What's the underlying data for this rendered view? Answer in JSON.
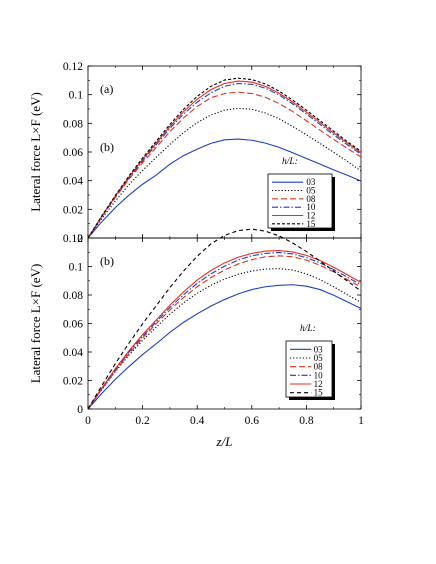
{
  "chart_data": [
    {
      "type": "line",
      "panel_label_top": "(a)",
      "panel_label_mid": "(b)",
      "ylabel": "Lateral force L×F (eV)",
      "xlabel": "",
      "xlim": [
        0,
        1
      ],
      "ylim": [
        0,
        0.12
      ],
      "yticks": [
        "0",
        "0.02",
        "0.04",
        "0.06",
        "0.08",
        "0.1",
        "0.12"
      ],
      "xticks": [],
      "legend_title": "h/L:",
      "legend_position": "lower-right",
      "x": [
        0,
        0.05,
        0.1,
        0.15,
        0.2,
        0.25,
        0.3,
        0.35,
        0.4,
        0.45,
        0.5,
        0.55,
        0.6,
        0.65,
        0.7,
        0.75,
        0.8,
        0.85,
        0.9,
        0.95,
        1.0
      ],
      "series": [
        {
          "name": "03",
          "color": "#1f3fbf",
          "dash": "solid",
          "values": [
            0,
            0.0112,
            0.0212,
            0.0299,
            0.0375,
            0.0439,
            0.0515,
            0.0575,
            0.062,
            0.066,
            0.0685,
            0.069,
            0.0682,
            0.0662,
            0.0632,
            0.0595,
            0.0555,
            0.0515,
            0.0475,
            0.0438,
            0.0398
          ]
        },
        {
          "name": "05",
          "color": "#000000",
          "dash": "dotted",
          "values": [
            0,
            0.0134,
            0.0258,
            0.0372,
            0.0472,
            0.0563,
            0.0653,
            0.0735,
            0.0805,
            0.0858,
            0.0892,
            0.0905,
            0.0898,
            0.0872,
            0.0832,
            0.0778,
            0.072,
            0.066,
            0.0598,
            0.0535,
            0.0468
          ]
        },
        {
          "name": "08",
          "color": "#e03020",
          "dash": "longdash",
          "values": [
            0,
            0.0145,
            0.0282,
            0.041,
            0.0525,
            0.0632,
            0.0742,
            0.0838,
            0.0918,
            0.0978,
            0.1008,
            0.1018,
            0.1008,
            0.0982,
            0.0938,
            0.0882,
            0.0818,
            0.0752,
            0.0688,
            0.0625,
            0.0565
          ]
        },
        {
          "name": "10",
          "color": "#1f3fbf",
          "dash": "dashdot",
          "values": [
            0,
            0.0148,
            0.0288,
            0.0418,
            0.0538,
            0.065,
            0.0765,
            0.0865,
            0.0948,
            0.1012,
            0.1058,
            0.1078,
            0.1072,
            0.1045,
            0.0998,
            0.0935,
            0.0865,
            0.0792,
            0.072,
            0.065,
            0.0585
          ]
        },
        {
          "name": "12",
          "color": "#e03020",
          "dash": "solid",
          "values": [
            0,
            0.015,
            0.0292,
            0.0425,
            0.0548,
            0.0662,
            0.0778,
            0.0882,
            0.0968,
            0.1035,
            0.1078,
            0.1095,
            0.1088,
            0.1058,
            0.101,
            0.0948,
            0.0878,
            0.0805,
            0.0732,
            0.0662,
            0.0595
          ]
        },
        {
          "name": "15",
          "color": "#000000",
          "dash": "shortdash",
          "values": [
            0,
            0.0152,
            0.0296,
            0.0432,
            0.0558,
            0.0675,
            0.0792,
            0.0898,
            0.0988,
            0.1058,
            0.1102,
            0.1115,
            0.1105,
            0.1075,
            0.1025,
            0.0962,
            0.0892,
            0.0818,
            0.0745,
            0.0672,
            0.0605
          ]
        }
      ]
    },
    {
      "type": "line",
      "panel_label_top": "(b)",
      "ylabel": "Lateral force L×F (eV)",
      "xlabel": "z/L",
      "xlim": [
        0,
        1
      ],
      "ylim": [
        0,
        0.12
      ],
      "yticks": [
        "0",
        "0.02",
        "0.04",
        "0.06",
        "0.08",
        "0.1",
        "0.12"
      ],
      "xticks": [
        "0",
        "0.2",
        "0.4",
        "0.6",
        "0.8",
        "1"
      ],
      "legend_title": "h/L:",
      "legend_position": "lower-right",
      "x": [
        0,
        0.05,
        0.1,
        0.15,
        0.2,
        0.25,
        0.3,
        0.35,
        0.4,
        0.45,
        0.5,
        0.55,
        0.6,
        0.65,
        0.7,
        0.75,
        0.8,
        0.85,
        0.9,
        0.95,
        1.0
      ],
      "series": [
        {
          "name": "03",
          "color": "#1f3fbf",
          "dash": "solid",
          "values": [
            0,
            0.0108,
            0.0208,
            0.0298,
            0.0382,
            0.0458,
            0.0538,
            0.0608,
            0.0668,
            0.0722,
            0.0768,
            0.0808,
            0.0838,
            0.0858,
            0.0868,
            0.0872,
            0.0862,
            0.0838,
            0.0798,
            0.0752,
            0.0705
          ]
        },
        {
          "name": "05",
          "color": "#000000",
          "dash": "dotted",
          "values": [
            0,
            0.0135,
            0.0262,
            0.0378,
            0.0482,
            0.0575,
            0.0665,
            0.0745,
            0.0812,
            0.0868,
            0.0912,
            0.0945,
            0.0968,
            0.0982,
            0.0985,
            0.0975,
            0.0948,
            0.0908,
            0.0858,
            0.0802,
            0.0748
          ]
        },
        {
          "name": "08",
          "color": "#e03020",
          "dash": "longdash",
          "values": [
            0,
            0.0138,
            0.0268,
            0.0388,
            0.0498,
            0.0598,
            0.0695,
            0.0782,
            0.0858,
            0.0922,
            0.0975,
            0.1018,
            0.1048,
            0.1068,
            0.1075,
            0.1068,
            0.1045,
            0.1008,
            0.0962,
            0.0908,
            0.0855
          ]
        },
        {
          "name": "10",
          "color": "#1f3fbf",
          "dash": "dashdot",
          "values": [
            0,
            0.0142,
            0.0275,
            0.0398,
            0.051,
            0.0612,
            0.0712,
            0.0802,
            0.0882,
            0.0948,
            0.1002,
            0.1045,
            0.1075,
            0.1092,
            0.1098,
            0.1088,
            0.1062,
            0.1025,
            0.0978,
            0.0925,
            0.0872
          ]
        },
        {
          "name": "12",
          "color": "#e03020",
          "dash": "solid",
          "values": [
            0,
            0.0145,
            0.0282,
            0.0408,
            0.0522,
            0.0625,
            0.0728,
            0.0822,
            0.0905,
            0.0972,
            0.1025,
            0.1065,
            0.1092,
            0.1108,
            0.1112,
            0.1102,
            0.1078,
            0.1042,
            0.0995,
            0.0942,
            0.0888
          ]
        },
        {
          "name": "15",
          "color": "#000000",
          "dash": "dashed",
          "values": [
            0,
            0.0162,
            0.0318,
            0.0462,
            0.0598,
            0.0725,
            0.0852,
            0.0968,
            0.1072,
            0.1158,
            0.1218,
            0.1252,
            0.1262,
            0.1248,
            0.1215,
            0.1165,
            0.1105,
            0.1038,
            0.0968,
            0.0898,
            0.0828
          ]
        }
      ]
    }
  ]
}
